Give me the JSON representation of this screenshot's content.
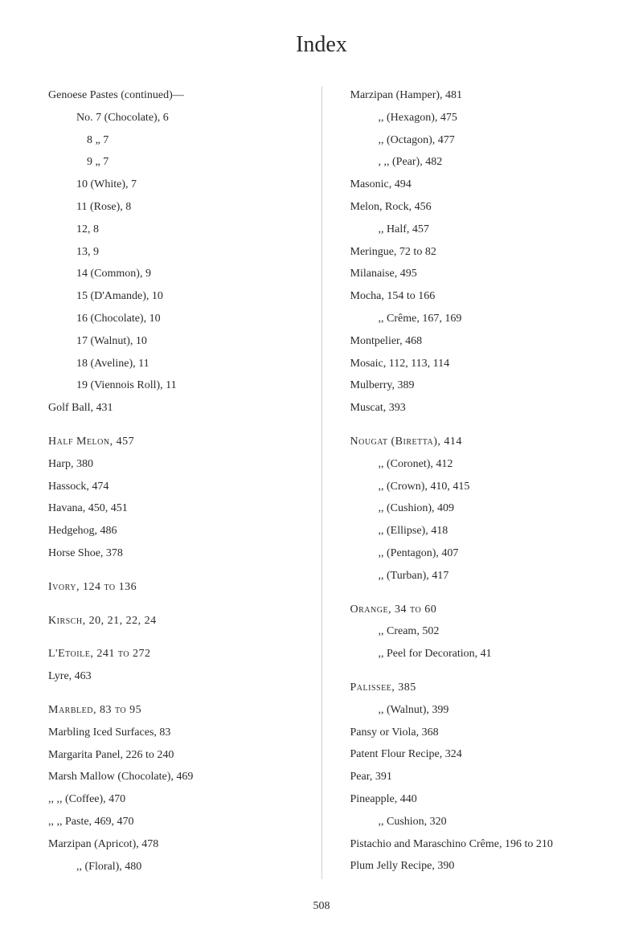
{
  "title": "Index",
  "pageNumber": "508",
  "left": {
    "continued": "Genoese Pastes (continued)—",
    "sub": [
      "No. 7 (Chocolate), 6",
      "8 „ 7",
      "9 „ 7",
      "10 (White), 7",
      "11 (Rose), 8",
      "12, 8",
      "13, 9",
      "14 (Common), 9",
      "15 (D'Amande), 10",
      "16 (Chocolate), 10",
      "17 (Walnut), 10",
      "18 (Aveline), 11",
      "19 (Viennois Roll), 11"
    ],
    "golf": "Golf Ball, 431",
    "halfmelon": "Half Melon, 457",
    "items1": [
      "Harp, 380",
      "Hassock, 474",
      "Havana, 450, 451",
      "Hedgehog, 486",
      "Horse Shoe, 378"
    ],
    "ivory": "Ivory, 124 to 136",
    "kirsch": "Kirsch, 20, 21, 22, 24",
    "letoile": "L'Etoile, 241 to 272",
    "lyre": "Lyre, 463",
    "marbled": "Marbled, 83 to 95",
    "items2": [
      "Marbling Iced Surfaces, 83",
      "Margarita Panel, 226 to 240",
      "Marsh Mallow (Chocolate), 469",
      ",, ,, (Coffee), 470",
      ",, ,, Paste, 469, 470",
      "Marzipan (Apricot), 478",
      ",, (Floral), 480"
    ]
  },
  "right": {
    "marzipan": [
      "Marzipan (Hamper), 481",
      ",, (Hexagon), 475",
      ",, (Octagon), 477",
      ", ,, (Pear), 482"
    ],
    "items1": [
      "Masonic, 494",
      "Melon, Rock, 456",
      ",, Half, 457",
      "Meringue, 72 to 82",
      "Milanaise, 495",
      "Mocha, 154 to 166",
      ",, Crême, 167, 169",
      "Montpelier, 468",
      "Mosaic, 112, 113, 114",
      "Mulberry, 389",
      "Muscat, 393"
    ],
    "nougat": "Nougat (Biretta), 414",
    "nougatSub": [
      ",, (Coronet), 412",
      ",, (Crown), 410, 415",
      ",, (Cushion), 409",
      ",, (Ellipse), 418",
      ",, (Pentagon), 407",
      ",, (Turban), 417"
    ],
    "orange": "Orange, 34 to 60",
    "orangeSub": [
      ",, Cream, 502",
      ",, Peel for Decoration, 41"
    ],
    "palissee": "Palissee, 385",
    "palisseeSub": ",, (Walnut), 399",
    "items2": [
      "Pansy or Viola, 368",
      "Patent Flour Recipe, 324",
      "Pear, 391",
      "Pineapple, 440",
      ",, Cushion, 320",
      "Pistachio and Maraschino Crême, 196 to 210",
      "Plum Jelly Recipe, 390"
    ]
  }
}
